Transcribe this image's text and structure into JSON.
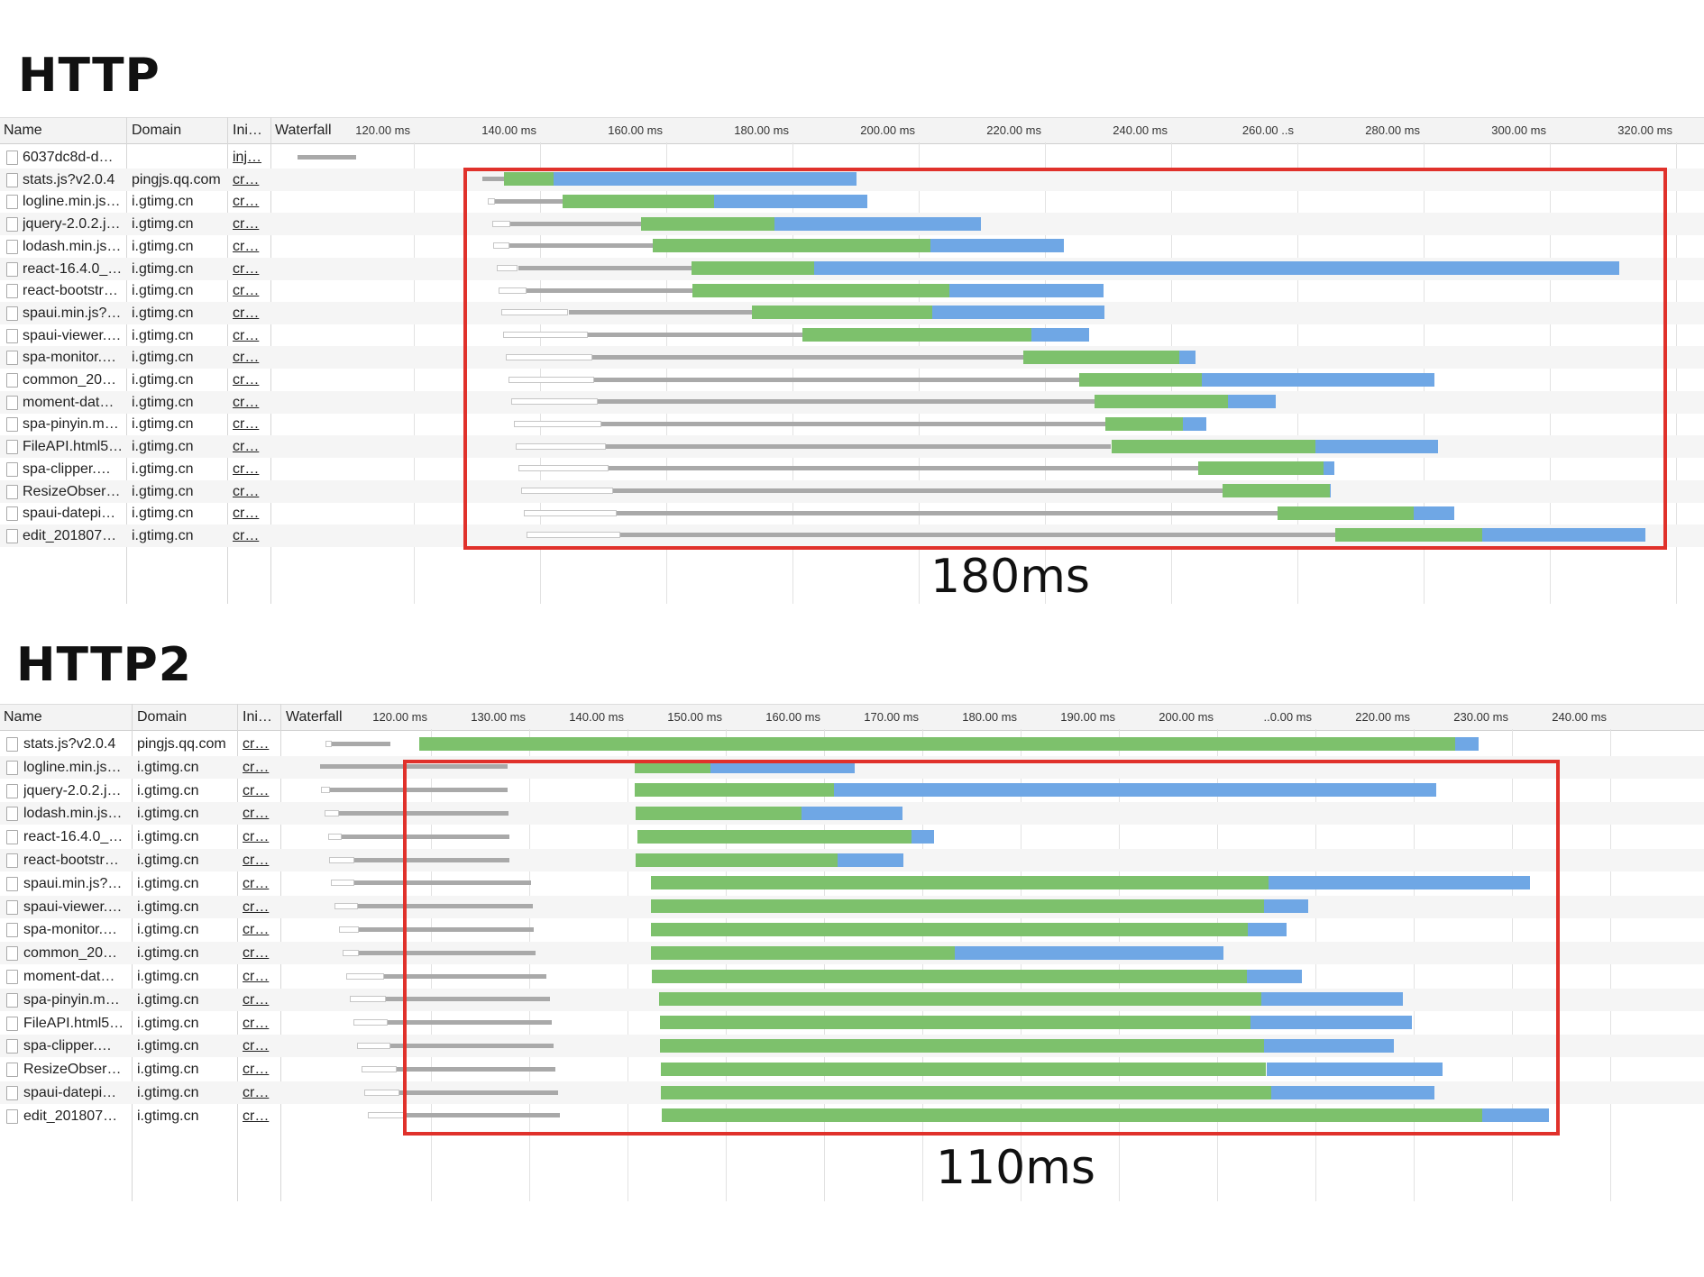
{
  "colors": {
    "waiting": "#7dc16c",
    "download": "#6fa7e5",
    "stalled": "#a9a9a9",
    "highlight": "#e0312b"
  },
  "icons": {
    "file": "document-icon"
  },
  "http": {
    "title": "HTTP",
    "headers": {
      "name": "Name",
      "domain": "Domain",
      "initiator": "Ini…",
      "waterfall": "Waterfall"
    },
    "ticks": [
      "120.00 ms",
      "140.00 ms",
      "160.00 ms",
      "180.00 ms",
      "200.00 ms",
      "220.00 ms",
      "240.00 ms",
      "260.00 ..s",
      "280.00 ms",
      "300.00 ms",
      "320.00 ms"
    ],
    "duration_label": "180ms",
    "rows": [
      {
        "name": "6037dc8d-d…",
        "domain": "",
        "initiator": "inj…",
        "timing": [
          101.5,
          110.8,
          0,
          0
        ]
      },
      {
        "name": "stats.js?v2.0.4",
        "domain": "pingjs.qq.com",
        "initiator": "cr…",
        "timing": [
          130.8,
          134.3,
          142.2,
          190.2
        ]
      },
      {
        "name": "logline.min.js…",
        "domain": "i.gtimg.cn",
        "initiator": "cr…",
        "timing": [
          131.7,
          132.9,
          143.6,
          167.6,
          191.8
        ]
      },
      {
        "name": "jquery-2.0.2.j…",
        "domain": "i.gtimg.cn",
        "initiator": "cr…",
        "timing": [
          132.4,
          135.3,
          156.0,
          177.1,
          209.8
        ]
      },
      {
        "name": "lodash.min.js…",
        "domain": "i.gtimg.cn",
        "initiator": "cr…",
        "timing": [
          132.6,
          135.1,
          157.8,
          201.8,
          223.0
        ]
      },
      {
        "name": "react-16.4.0_…",
        "domain": "i.gtimg.cn",
        "initiator": "cr…",
        "timing": [
          133.1,
          136.5,
          164.0,
          183.4,
          311.0
        ]
      },
      {
        "name": "react-bootstr…",
        "domain": "i.gtimg.cn",
        "initiator": "cr…",
        "timing": [
          133.4,
          137.8,
          164.2,
          204.8,
          229.3
        ]
      },
      {
        "name": "spaui.min.js?…",
        "domain": "i.gtimg.cn",
        "initiator": "cr…",
        "timing": [
          133.8,
          144.5,
          173.6,
          202.1,
          229.4
        ]
      },
      {
        "name": "spaui-viewer.…",
        "domain": "i.gtimg.cn",
        "initiator": "cr…",
        "timing": [
          134.2,
          147.6,
          181.6,
          217.8,
          227.0
        ]
      },
      {
        "name": "spa-monitor.…",
        "domain": "i.gtimg.cn",
        "initiator": "cr…",
        "timing": [
          134.6,
          148.3,
          216.6,
          241.3,
          243.8
        ]
      },
      {
        "name": "common_20…",
        "domain": "i.gtimg.cn",
        "initiator": "cr…",
        "timing": [
          135.0,
          148.6,
          225.4,
          244.8,
          281.7
        ]
      },
      {
        "name": "moment-dat…",
        "domain": "i.gtimg.cn",
        "initiator": "cr…",
        "timing": [
          135.4,
          149.2,
          227.9,
          249.0,
          256.5
        ]
      },
      {
        "name": "spa-pinyin.m…",
        "domain": "i.gtimg.cn",
        "initiator": "cr…",
        "timing": [
          135.8,
          149.7,
          229.6,
          241.8,
          245.6
        ]
      },
      {
        "name": "FileAPI.html5…",
        "domain": "i.gtimg.cn",
        "initiator": "cr…",
        "timing": [
          136.2,
          150.4,
          230.5,
          262.8,
          282.3
        ]
      },
      {
        "name": "spa-clipper.…",
        "domain": "i.gtimg.cn",
        "initiator": "cr…",
        "timing": [
          136.6,
          150.9,
          244.3,
          264.2,
          265.8
        ]
      },
      {
        "name": "ResizeObser…",
        "domain": "i.gtimg.cn",
        "initiator": "cr…",
        "timing": [
          137.0,
          151.5,
          248.2,
          265.1,
          265.2
        ]
      },
      {
        "name": "spaui-datepi…",
        "domain": "i.gtimg.cn",
        "initiator": "cr…",
        "timing": [
          137.4,
          152.1,
          256.9,
          278.4,
          284.9
        ]
      },
      {
        "name": "edit_201807…",
        "domain": "i.gtimg.cn",
        "initiator": "cr…",
        "timing": [
          137.8,
          152.7,
          266.0,
          289.3,
          315.1
        ]
      }
    ]
  },
  "http2": {
    "title": "HTTP2",
    "headers": {
      "name": "Name",
      "domain": "Domain",
      "initiator": "Ini…",
      "waterfall": "Waterfall"
    },
    "ticks": [
      "120.00 ms",
      "130.00 ms",
      "140.00 ms",
      "150.00 ms",
      "160.00 ms",
      "170.00 ms",
      "180.00 ms",
      "190.00 ms",
      "200.00 ms",
      "..0.00 ms",
      "220.00 ms",
      "230.00 ms",
      "240.00 ms"
    ],
    "duration_label": "110ms",
    "rows": [
      {
        "name": "stats.js?v2.0.4",
        "domain": "pingjs.qq.com",
        "initiator": "cr…",
        "timing": [
          109.3,
          109.9,
          115.9,
          118.8,
          224.2,
          226.6
        ]
      },
      {
        "name": "logline.min.js…",
        "domain": "i.gtimg.cn",
        "initiator": "cr…",
        "timing": [
          108.7,
          108.7,
          127.8,
          140.7,
          148.4,
          163.1
        ]
      },
      {
        "name": "jquery-2.0.2.j…",
        "domain": "i.gtimg.cn",
        "initiator": "cr…",
        "timing": [
          108.8,
          109.7,
          127.8,
          140.7,
          161.0,
          222.3
        ]
      },
      {
        "name": "lodash.min.js…",
        "domain": "i.gtimg.cn",
        "initiator": "cr…",
        "timing": [
          109.2,
          110.6,
          127.9,
          140.8,
          157.7,
          168.0
        ]
      },
      {
        "name": "react-16.4.0_…",
        "domain": "i.gtimg.cn",
        "initiator": "cr…",
        "timing": [
          109.5,
          110.9,
          128.0,
          141.0,
          168.9,
          171.2
        ]
      },
      {
        "name": "react-bootstr…",
        "domain": "i.gtimg.cn",
        "initiator": "cr…",
        "timing": [
          109.6,
          112.2,
          128.0,
          140.8,
          161.4,
          168.1
        ]
      },
      {
        "name": "spaui.min.js?…",
        "domain": "i.gtimg.cn",
        "initiator": "cr…",
        "timing": [
          109.8,
          112.2,
          130.2,
          142.4,
          205.2,
          231.8
        ]
      },
      {
        "name": "spaui-viewer.…",
        "domain": "i.gtimg.cn",
        "initiator": "cr…",
        "timing": [
          110.2,
          112.6,
          130.4,
          142.4,
          204.8,
          209.3
        ]
      },
      {
        "name": "spa-monitor.…",
        "domain": "i.gtimg.cn",
        "initiator": "cr…",
        "timing": [
          110.6,
          112.7,
          130.5,
          142.4,
          203.1,
          207.1
        ]
      },
      {
        "name": "common_20…",
        "domain": "i.gtimg.cn",
        "initiator": "cr…",
        "timing": [
          111.0,
          112.7,
          130.6,
          142.4,
          173.3,
          200.6
        ]
      },
      {
        "name": "moment-dat…",
        "domain": "i.gtimg.cn",
        "initiator": "cr…",
        "timing": [
          111.4,
          115.2,
          131.7,
          142.5,
          203.0,
          208.6
        ]
      },
      {
        "name": "spa-pinyin.m…",
        "domain": "i.gtimg.cn",
        "initiator": "cr…",
        "timing": [
          111.7,
          115.4,
          132.1,
          143.2,
          204.5,
          218.9
        ]
      },
      {
        "name": "FileAPI.html5…",
        "domain": "i.gtimg.cn",
        "initiator": "cr…",
        "timing": [
          112.1,
          115.6,
          132.3,
          143.3,
          203.4,
          219.8
        ]
      },
      {
        "name": "spa-clipper.…",
        "domain": "i.gtimg.cn",
        "initiator": "cr…",
        "timing": [
          112.5,
          115.9,
          132.5,
          143.3,
          204.8,
          218.0
        ]
      },
      {
        "name": "ResizeObser…",
        "domain": "i.gtimg.cn",
        "initiator": "cr…",
        "timing": [
          112.9,
          116.5,
          132.7,
          143.4,
          205.0,
          222.9
        ]
      },
      {
        "name": "spaui-datepi…",
        "domain": "i.gtimg.cn",
        "initiator": "cr…",
        "timing": [
          113.2,
          116.8,
          132.9,
          143.4,
          205.5,
          222.1
        ]
      },
      {
        "name": "edit_201807…",
        "domain": "i.gtimg.cn",
        "initiator": "cr…",
        "timing": [
          113.6,
          117.4,
          133.1,
          143.5,
          227.0,
          233.8
        ]
      }
    ]
  }
}
